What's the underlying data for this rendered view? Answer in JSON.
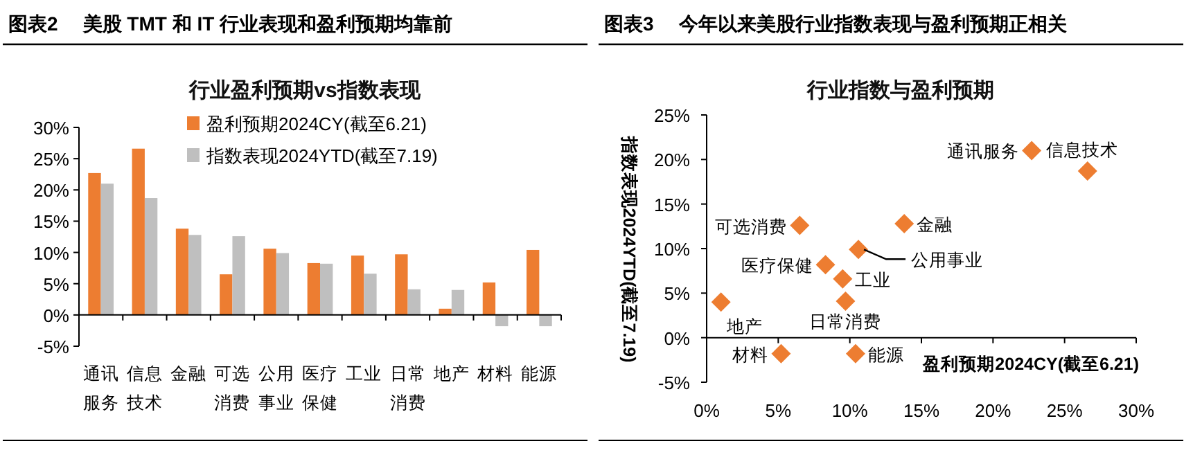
{
  "chart_data": [
    {
      "type": "bar",
      "title": "图表2 美股 TMT 和 IT 行业表现和盈利预期均靠前",
      "subtitle": "行业盈利预期vs指数表现",
      "categories": [
        "通讯服务",
        "信息技术",
        "金融",
        "可选消费",
        "公用事业",
        "医疗保健",
        "工业",
        "日常消费",
        "地产",
        "材料",
        "能源"
      ],
      "series": [
        {
          "name": "盈利预期2024CY(截至6.21)",
          "color": "#ed7d31",
          "values": [
            22.7,
            26.6,
            13.8,
            6.5,
            10.6,
            8.3,
            9.5,
            9.7,
            1.0,
            5.2,
            10.4
          ]
        },
        {
          "name": "指数表现2024YTD(截至7.19)",
          "color": "#bfbfbf",
          "values": [
            21.0,
            18.7,
            12.8,
            12.6,
            9.9,
            8.2,
            6.6,
            4.1,
            4.0,
            -1.8,
            -1.8
          ]
        }
      ],
      "ylim": [
        -5,
        30
      ],
      "yticks": [
        {
          "value": -5,
          "label": "-5%"
        },
        {
          "value": 0,
          "label": "0%"
        },
        {
          "value": 5,
          "label": "5%"
        },
        {
          "value": 10,
          "label": "10%"
        },
        {
          "value": 15,
          "label": "15%"
        },
        {
          "value": 20,
          "label": "20%"
        },
        {
          "value": 25,
          "label": "25%"
        },
        {
          "value": 30,
          "label": "30%"
        }
      ],
      "legend": "top right"
    },
    {
      "type": "scatter",
      "title": "图表3 今年以来美股行业指数表现与盈利预期正相关",
      "subtitle": "行业指数与盈利预期",
      "xlabel": "盈利预期2024CY(截至6.21)",
      "ylabel": "指数表现2024YTD(截至7.19)",
      "x": [
        22.7,
        26.6,
        13.8,
        6.5,
        10.6,
        8.3,
        9.5,
        9.7,
        1.0,
        5.2,
        10.4
      ],
      "series": [
        {
          "color": "#ed7d31",
          "values": [
            21.0,
            18.7,
            12.8,
            12.6,
            9.9,
            8.2,
            6.6,
            4.1,
            4.0,
            -1.8,
            -1.8
          ]
        }
      ],
      "marker": "diamond",
      "xlim": [
        0,
        30
      ],
      "xticks": [
        {
          "value": 0,
          "label": "0%"
        },
        {
          "value": 5,
          "label": "5%"
        },
        {
          "value": 10,
          "label": "10%"
        },
        {
          "value": 15,
          "label": "15%"
        },
        {
          "value": 20,
          "label": "20%"
        },
        {
          "value": 25,
          "label": "25%"
        },
        {
          "value": 30,
          "label": "30%"
        }
      ],
      "ylim": [
        -5,
        25
      ],
      "yticks": [
        {
          "value": -5,
          "label": "-5%"
        },
        {
          "value": 0,
          "label": "0%"
        },
        {
          "value": 5,
          "label": "5%"
        },
        {
          "value": 10,
          "label": "10%"
        },
        {
          "value": 15,
          "label": "15%"
        },
        {
          "value": 20,
          "label": "20%"
        },
        {
          "value": 25,
          "label": "25%"
        }
      ],
      "annotations": [
        {
          "text": "通讯服务",
          "x": 22.7,
          "y": 21.0
        },
        {
          "text": "信息技术",
          "x": 26.6,
          "y": 18.7
        },
        {
          "text": "金融",
          "x": 13.8,
          "y": 12.8
        },
        {
          "text": "可选消费",
          "x": 6.5,
          "y": 12.6
        },
        {
          "text": "公用事业",
          "x": 10.6,
          "y": 9.9
        },
        {
          "text": "医疗保健",
          "x": 8.3,
          "y": 8.2
        },
        {
          "text": "工业",
          "x": 9.5,
          "y": 6.6
        },
        {
          "text": "日常消费",
          "x": 9.7,
          "y": 4.1
        },
        {
          "text": "地产",
          "x": 1.0,
          "y": 4.0
        },
        {
          "text": "材料",
          "x": 5.2,
          "y": -1.8
        },
        {
          "text": "能源",
          "x": 10.4,
          "y": -1.8
        }
      ]
    }
  ]
}
